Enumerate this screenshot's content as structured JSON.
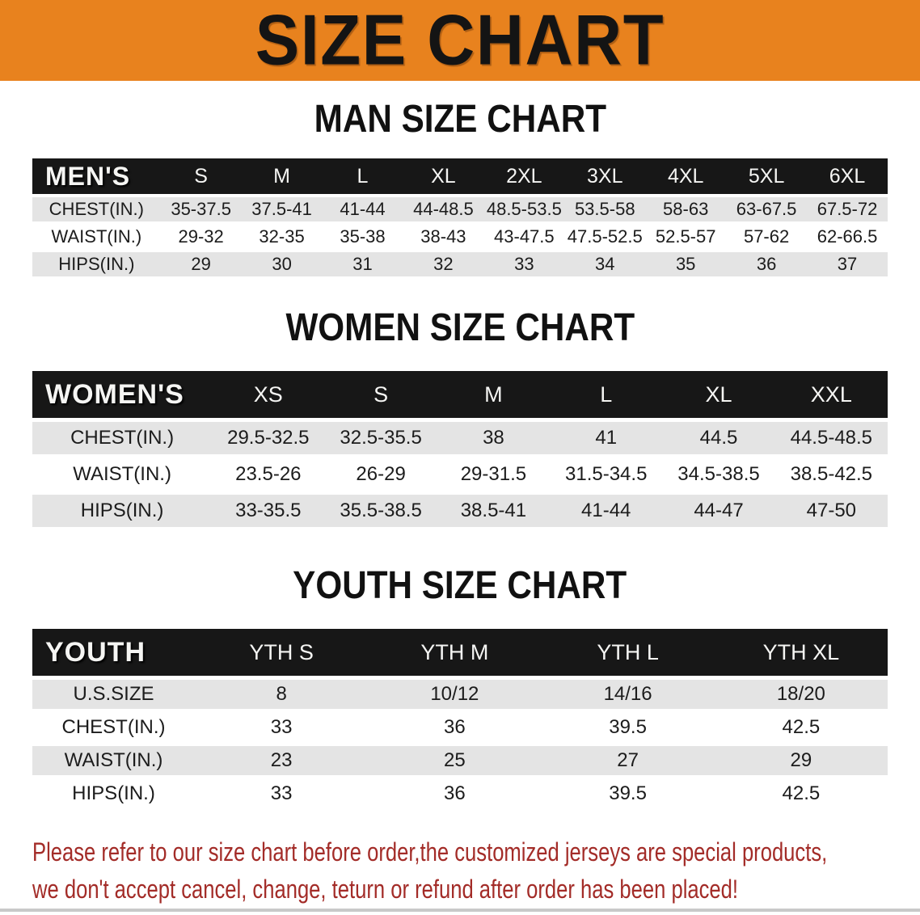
{
  "colors": {
    "banner_bg": "#E8821E",
    "header_bar": "#171717",
    "row_gray": "#E4E4E4",
    "disclaimer_red": "#A32C28"
  },
  "banner": {
    "title": "SIZE CHART"
  },
  "sections": [
    {
      "heading": "MAN SIZE CHART",
      "table": {
        "header": [
          "MEN'S",
          "S",
          "M",
          "L",
          "XL",
          "2XL",
          "3XL",
          "4XL",
          "5XL",
          "6XL"
        ],
        "rows": [
          [
            "CHEST(IN.)",
            "35-37.5",
            "37.5-41",
            "41-44",
            "44-48.5",
            "48.5-53.5",
            "53.5-58",
            "58-63",
            "63-67.5",
            "67.5-72"
          ],
          [
            "WAIST(IN.)",
            "29-32",
            "32-35",
            "35-38",
            "38-43",
            "43-47.5",
            "47.5-52.5",
            "52.5-57",
            "57-62",
            "62-66.5"
          ],
          [
            "HIPS(IN.)",
            "29",
            "30",
            "31",
            "32",
            "33",
            "34",
            "35",
            "36",
            "37"
          ]
        ]
      }
    },
    {
      "heading": "WOMEN SIZE CHART",
      "table": {
        "header": [
          "WOMEN'S",
          "XS",
          "S",
          "M",
          "L",
          "XL",
          "XXL"
        ],
        "rows": [
          [
            "CHEST(IN.)",
            "29.5-32.5",
            "32.5-35.5",
            "38",
            "41",
            "44.5",
            "44.5-48.5"
          ],
          [
            "WAIST(IN.)",
            "23.5-26",
            "26-29",
            "29-31.5",
            "31.5-34.5",
            "34.5-38.5",
            "38.5-42.5"
          ],
          [
            "HIPS(IN.)",
            "33-35.5",
            "35.5-38.5",
            "38.5-41",
            "41-44",
            "44-47",
            "47-50"
          ]
        ]
      }
    },
    {
      "heading": "YOUTH SIZE CHART",
      "table": {
        "header": [
          "YOUTH",
          "YTH S",
          "YTH M",
          "YTH L",
          "YTH XL"
        ],
        "rows": [
          [
            "U.S.SIZE",
            "8",
            "10/12",
            "14/16",
            "18/20"
          ],
          [
            "CHEST(IN.)",
            "33",
            "36",
            "39.5",
            "42.5"
          ],
          [
            "WAIST(IN.)",
            "23",
            "25",
            "27",
            "29"
          ],
          [
            "HIPS(IN.)",
            "33",
            "36",
            "39.5",
            "42.5"
          ]
        ]
      }
    }
  ],
  "disclaimer": {
    "lines": [
      "Please refer to our size chart before order,the customized jerseys are special products,",
      "we don't accept cancel, change, teturn or refund after order has been placed!"
    ]
  }
}
